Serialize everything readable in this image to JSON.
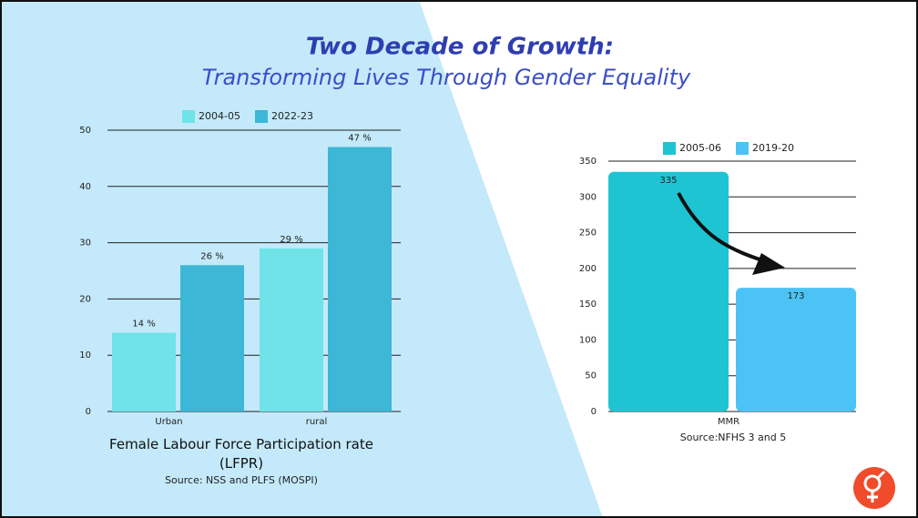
{
  "title": "Two Decade of Growth:",
  "subtitle": "Transforming Lives Through Gender Equality",
  "chart_data": [
    {
      "type": "bar",
      "categories": [
        "Urban",
        "rural"
      ],
      "series": [
        {
          "name": "2004-05",
          "color": "#6fe3e8",
          "values": [
            14,
            29
          ],
          "value_labels": [
            "14 %",
            "29 %"
          ]
        },
        {
          "name": "2022-23",
          "color": "#3cb7d6",
          "values": [
            26,
            47
          ],
          "value_labels": [
            "26 %",
            "47 %"
          ]
        }
      ],
      "ylim": [
        0,
        50
      ],
      "yticks": [
        0,
        10,
        20,
        30,
        40,
        50
      ],
      "grid": true,
      "x_label": "Female Labour Force Participation rate (LFPR)",
      "source": "Source: NSS and PLFS (MOSPI)"
    },
    {
      "type": "bar",
      "categories": [
        "MMR"
      ],
      "series": [
        {
          "name": "2005-06",
          "color": "#1fc4d3",
          "values": [
            335
          ]
        },
        {
          "name": "2019-20",
          "color": "#4cc3f5",
          "values": [
            173
          ]
        }
      ],
      "ylim": [
        0,
        350
      ],
      "yticks": [
        0,
        50,
        100,
        150,
        200,
        250,
        300,
        350
      ],
      "grid": true,
      "source": "Source:NFHS 3 and 5"
    }
  ]
}
